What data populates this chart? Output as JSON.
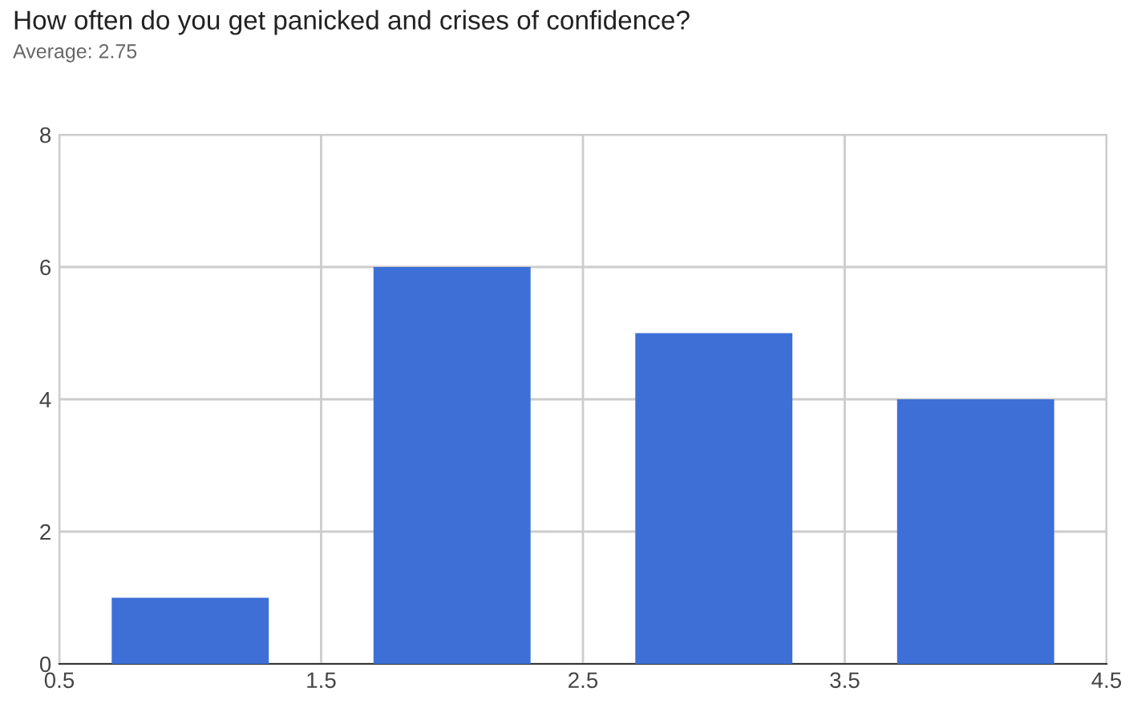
{
  "chart_data": {
    "type": "bar",
    "title": "How often do you get panicked and crises of confidence?",
    "subtitle": "Average: 2.75",
    "x": [
      1,
      2,
      3,
      4
    ],
    "values": [
      1,
      6,
      5,
      4
    ],
    "color": "#3d6fd6",
    "xlim": [
      0.5,
      4.5
    ],
    "xticks": [
      0.5,
      1.5,
      2.5,
      3.5,
      4.5
    ],
    "ylim": [
      0,
      8
    ],
    "yticks": [
      0,
      2,
      4,
      6,
      8
    ],
    "grid": true,
    "legend": false
  }
}
